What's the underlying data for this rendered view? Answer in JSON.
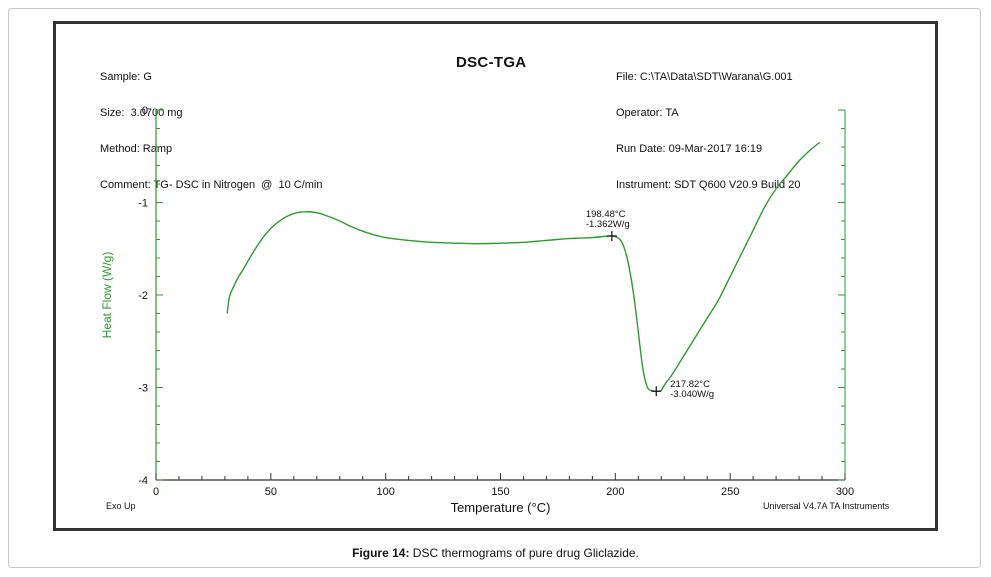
{
  "header": {
    "left_lines": [
      "Sample: G",
      "Size:  3.0700 mg",
      "Method: Ramp",
      "Comment: TG- DSC in Nitrogen  @  10 C/min"
    ],
    "title": "DSC-TGA",
    "right_lines": [
      "File: C:\\TA\\Data\\SDT\\Warana\\G.001",
      "Operator: TA",
      "Run Date: 09-Mar-2017 16:19",
      "Instrument: SDT Q600 V20.9 Build 20"
    ]
  },
  "footer": {
    "left": "Exo Up",
    "right": "Universal V4.7A TA Instruments"
  },
  "caption": {
    "label": "Figure 14:",
    "text": " DSC thermograms of pure drug Gliclazide."
  },
  "colors": {
    "curve": "#2e9a2e",
    "axis_y": "#2e9a2e",
    "axis_x": "#333333",
    "ylabel": "#2e9a2e"
  },
  "chart_data": {
    "type": "line",
    "xlabel": "Temperature (°C)",
    "ylabel": "Heat Flow (W/g)",
    "xlim": [
      0,
      300
    ],
    "ylim": [
      -4,
      0
    ],
    "x_ticks": [
      0,
      50,
      100,
      150,
      200,
      250,
      300
    ],
    "y_ticks": [
      0,
      -1,
      -2,
      -3,
      -4
    ],
    "x_tick_labels": [
      "0",
      "50",
      "100",
      "150",
      "200",
      "250",
      "300"
    ],
    "y_tick_labels": [
      "0",
      "-1",
      "-2",
      "-3",
      "-4"
    ],
    "grid": false,
    "series": [
      {
        "x": [
          31,
          32,
          34,
          36,
          38,
          42,
          46,
          50,
          55,
          60,
          65,
          70,
          75,
          80,
          85,
          90,
          95,
          100,
          110,
          120,
          130,
          140,
          150,
          160,
          170,
          180,
          190,
          198.48,
          202,
          204,
          206,
          208,
          210,
          212,
          214,
          216,
          217.82,
          219,
          220,
          222,
          225,
          230,
          235,
          240,
          245,
          250,
          255,
          260,
          265,
          270,
          275,
          280,
          285,
          289
        ],
        "y": [
          -2.2,
          -2.02,
          -1.9,
          -1.8,
          -1.72,
          -1.55,
          -1.4,
          -1.28,
          -1.18,
          -1.12,
          -1.1,
          -1.11,
          -1.15,
          -1.2,
          -1.26,
          -1.31,
          -1.35,
          -1.38,
          -1.41,
          -1.43,
          -1.44,
          -1.445,
          -1.44,
          -1.43,
          -1.41,
          -1.39,
          -1.38,
          -1.362,
          -1.4,
          -1.5,
          -1.7,
          -2.0,
          -2.4,
          -2.8,
          -3.0,
          -3.035,
          -3.04,
          -3.04,
          -3.03,
          -2.95,
          -2.85,
          -2.65,
          -2.45,
          -2.25,
          -2.05,
          -1.8,
          -1.55,
          -1.3,
          -1.05,
          -0.85,
          -0.7,
          -0.55,
          -0.43,
          -0.35
        ]
      }
    ],
    "annotations": [
      {
        "x": 198.48,
        "y": -1.362,
        "line1": "198.48°C",
        "line2": "-1.362W/g",
        "position": "above"
      },
      {
        "x": 217.82,
        "y": -3.04,
        "line1": "217.82°C",
        "line2": "-3.040W/g",
        "position": "right"
      }
    ]
  }
}
